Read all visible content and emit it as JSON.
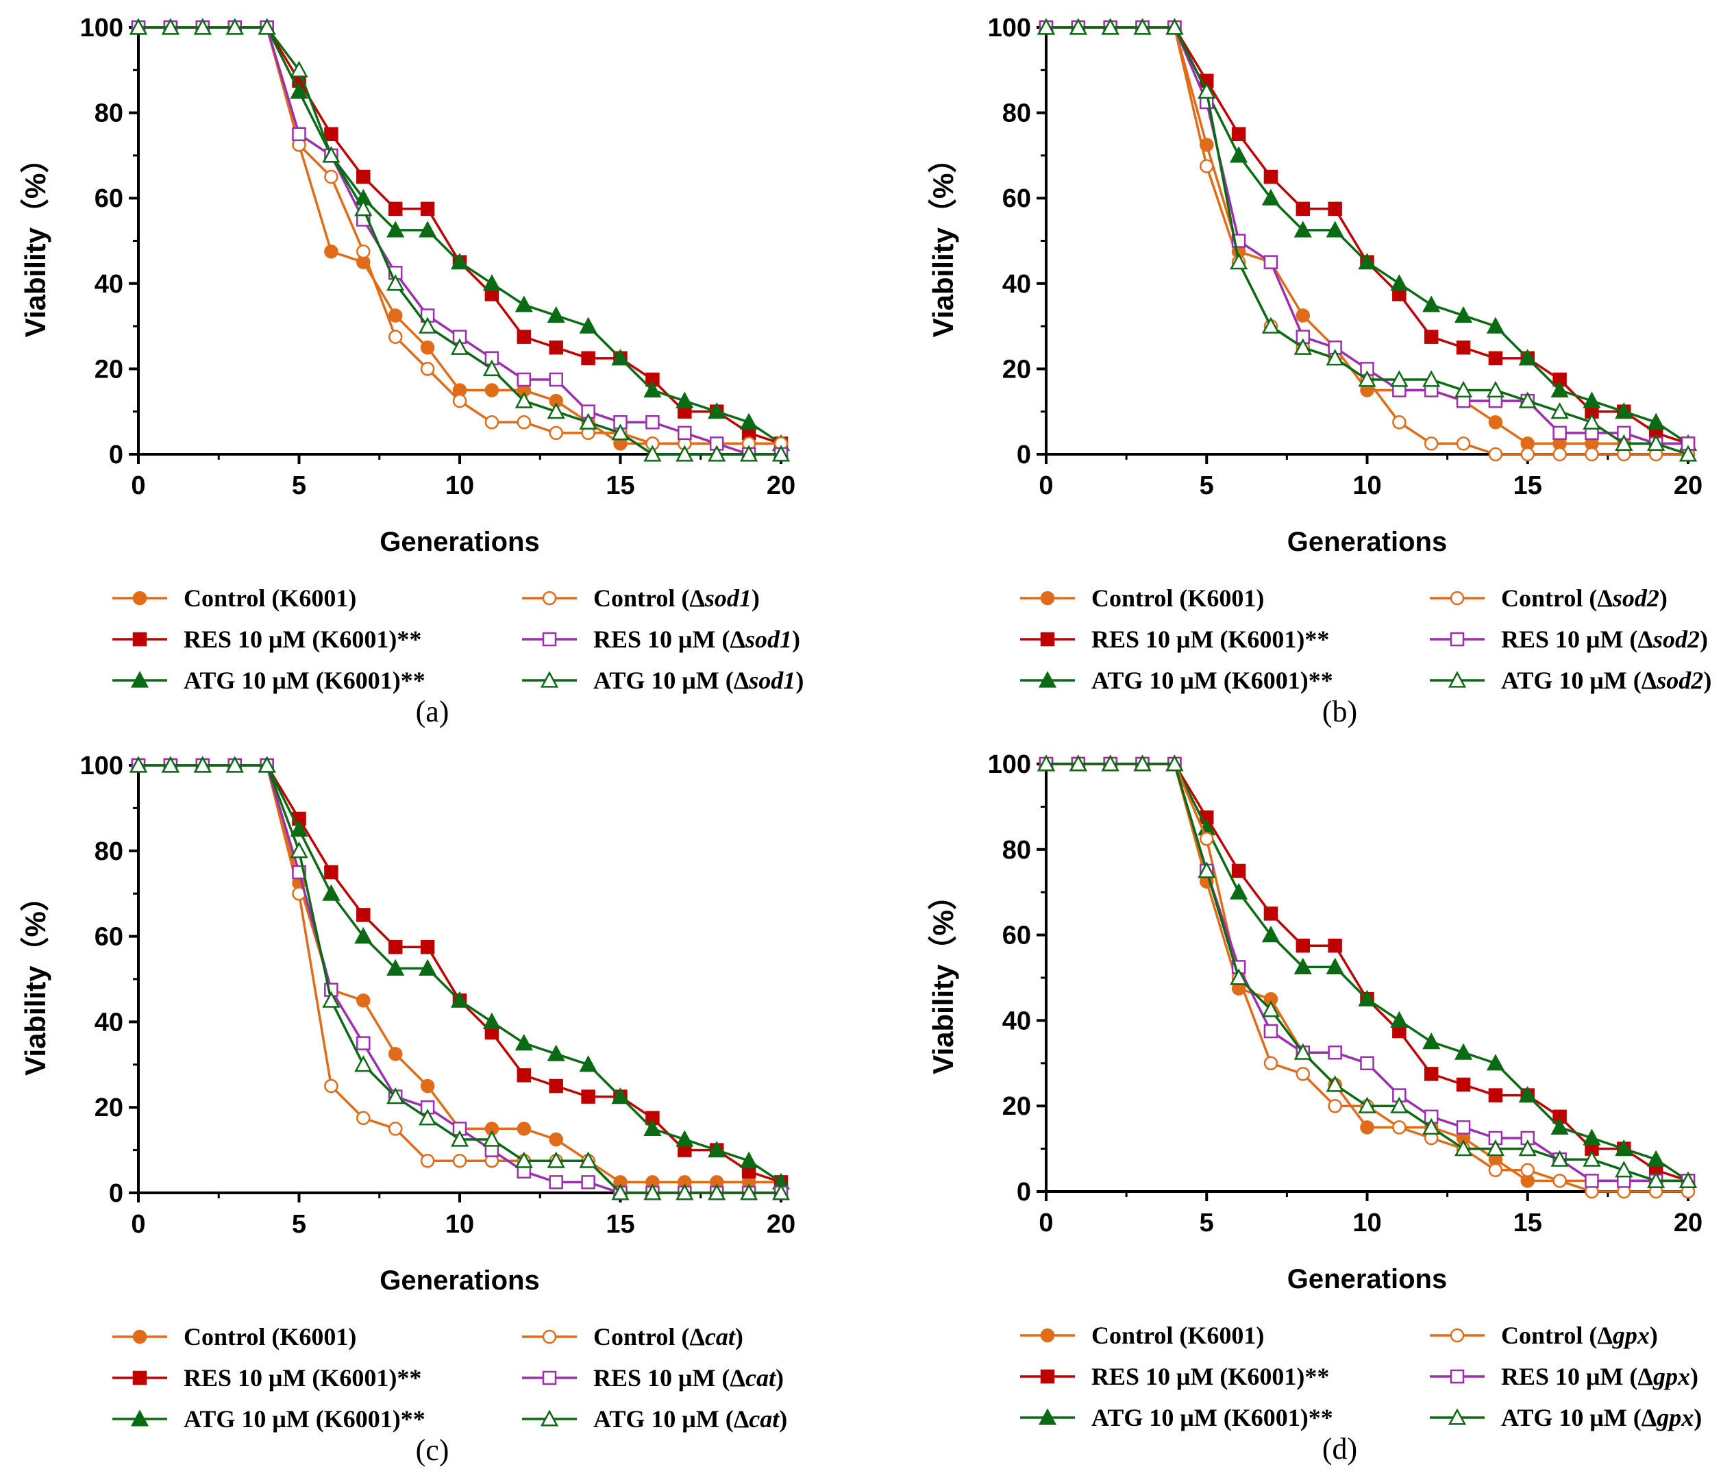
{
  "figure": {
    "ylabel": "Viability（%）",
    "xlabel": "Generations"
  },
  "chart_data": [
    {
      "type": "line",
      "panel": "(a)",
      "xlabel": "Generations",
      "ylabel": "Viability（%）",
      "xlim": [
        0,
        20
      ],
      "ylim": [
        0,
        100
      ],
      "xticks": [
        0,
        5,
        10,
        15,
        20
      ],
      "yticks": [
        0,
        20,
        40,
        60,
        80,
        100
      ],
      "x": [
        0,
        1,
        2,
        3,
        4,
        5,
        6,
        7,
        8,
        9,
        10,
        11,
        12,
        13,
        14,
        15,
        16,
        17,
        18,
        19,
        20
      ],
      "series": [
        {
          "name": "Control (K6001)",
          "legend_prefix": "Control (K6001)",
          "legend_italic": "",
          "legend_suffix": "",
          "color": "#E06C1A",
          "marker": "circle",
          "filled": true,
          "values": [
            100,
            100,
            100,
            100,
            100,
            72.5,
            47.5,
            45,
            32.5,
            25,
            15,
            15,
            15,
            12.5,
            7.5,
            2.5,
            2.5,
            2.5,
            2.5,
            2.5,
            2.5
          ]
        },
        {
          "name": "RES 10 μM (K6001)**",
          "legend_prefix": "RES 10 μM (K6001)**",
          "legend_italic": "",
          "legend_suffix": "",
          "color": "#C00000",
          "marker": "square",
          "filled": true,
          "values": [
            100,
            100,
            100,
            100,
            100,
            87.5,
            75,
            65,
            57.5,
            57.5,
            45,
            37.5,
            27.5,
            25,
            22.5,
            22.5,
            17.5,
            10,
            10,
            5,
            2.5
          ]
        },
        {
          "name": "ATG 10 μM (K6001)**",
          "legend_prefix": "ATG 10 μM (K6001)**",
          "legend_italic": "",
          "legend_suffix": "",
          "color": "#0B6B14",
          "marker": "triangle",
          "filled": true,
          "values": [
            100,
            100,
            100,
            100,
            100,
            85,
            70,
            60,
            52.5,
            52.5,
            45,
            40,
            35,
            32.5,
            30,
            22.5,
            15,
            12.5,
            10,
            7.5,
            2.5
          ]
        },
        {
          "name": "Control (Δsod1)",
          "legend_prefix": "Control (Δ",
          "legend_italic": "sod1",
          "legend_suffix": ")",
          "color": "#E06C1A",
          "marker": "circle",
          "filled": false,
          "values": [
            100,
            100,
            100,
            100,
            100,
            72.5,
            65,
            47.5,
            27.5,
            20,
            12.5,
            7.5,
            7.5,
            5,
            5,
            5,
            2.5,
            2.5,
            2.5,
            2.5,
            2.5
          ]
        },
        {
          "name": "RES 10 μM (Δsod1)",
          "legend_prefix": "RES 10 μM (Δ",
          "legend_italic": "sod1",
          "legend_suffix": ")",
          "color": "#9B2FAE",
          "marker": "square",
          "filled": false,
          "values": [
            100,
            100,
            100,
            100,
            100,
            75,
            70,
            55,
            42.5,
            32.5,
            27.5,
            22.5,
            17.5,
            17.5,
            10,
            7.5,
            7.5,
            5,
            2.5,
            0,
            0
          ]
        },
        {
          "name": "ATG 10 μM (Δsod1)",
          "legend_prefix": "ATG 10 μM (Δ",
          "legend_italic": "sod1",
          "legend_suffix": ")",
          "color": "#0B6B14",
          "marker": "triangle",
          "filled": false,
          "values": [
            100,
            100,
            100,
            100,
            100,
            90,
            70,
            57.5,
            40,
            30,
            25,
            20,
            12.5,
            10,
            7.5,
            5,
            0,
            0,
            0,
            0,
            0
          ]
        }
      ]
    },
    {
      "type": "line",
      "panel": "(b)",
      "xlabel": "Generations",
      "ylabel": "Viability（%）",
      "xlim": [
        0,
        20
      ],
      "ylim": [
        0,
        100
      ],
      "xticks": [
        0,
        5,
        10,
        15,
        20
      ],
      "yticks": [
        0,
        20,
        40,
        60,
        80,
        100
      ],
      "x": [
        0,
        1,
        2,
        3,
        4,
        5,
        6,
        7,
        8,
        9,
        10,
        11,
        12,
        13,
        14,
        15,
        16,
        17,
        18,
        19,
        20
      ],
      "series": [
        {
          "name": "Control (K6001)",
          "legend_prefix": "Control (K6001)",
          "legend_italic": "",
          "legend_suffix": "",
          "color": "#E06C1A",
          "marker": "circle",
          "filled": true,
          "values": [
            100,
            100,
            100,
            100,
            100,
            72.5,
            47.5,
            45,
            32.5,
            25,
            15,
            15,
            15,
            12.5,
            7.5,
            2.5,
            2.5,
            2.5,
            2.5,
            2.5,
            2.5
          ]
        },
        {
          "name": "RES 10 μM (K6001)**",
          "legend_prefix": "RES 10 μM (K6001)**",
          "legend_italic": "",
          "legend_suffix": "",
          "color": "#C00000",
          "marker": "square",
          "filled": true,
          "values": [
            100,
            100,
            100,
            100,
            100,
            87.5,
            75,
            65,
            57.5,
            57.5,
            45,
            37.5,
            27.5,
            25,
            22.5,
            22.5,
            17.5,
            10,
            10,
            5,
            2.5
          ]
        },
        {
          "name": "ATG 10 μM (K6001)**",
          "legend_prefix": "ATG 10 μM (K6001)**",
          "legend_italic": "",
          "legend_suffix": "",
          "color": "#0B6B14",
          "marker": "triangle",
          "filled": true,
          "values": [
            100,
            100,
            100,
            100,
            100,
            85,
            70,
            60,
            52.5,
            52.5,
            45,
            40,
            35,
            32.5,
            30,
            22.5,
            15,
            12.5,
            10,
            7.5,
            2.5
          ]
        },
        {
          "name": "Control (Δsod2)",
          "legend_prefix": "Control (Δ",
          "legend_italic": "sod2",
          "legend_suffix": ")",
          "color": "#E06C1A",
          "marker": "circle",
          "filled": false,
          "values": [
            100,
            100,
            100,
            100,
            100,
            67.5,
            45,
            30,
            25,
            22.5,
            17.5,
            7.5,
            2.5,
            2.5,
            0,
            0,
            0,
            0,
            0,
            0,
            0
          ]
        },
        {
          "name": "RES 10 μM (Δsod2)",
          "legend_prefix": "RES 10 μM (Δ",
          "legend_italic": "sod2",
          "legend_suffix": ")",
          "color": "#9B2FAE",
          "marker": "square",
          "filled": false,
          "values": [
            100,
            100,
            100,
            100,
            100,
            82.5,
            50,
            45,
            27.5,
            25,
            20,
            15,
            15,
            12.5,
            12.5,
            12.5,
            5,
            5,
            5,
            2.5,
            2.5
          ]
        },
        {
          "name": "ATG 10 μM (Δsod2)",
          "legend_prefix": "ATG 10 μM (Δ",
          "legend_italic": "sod2",
          "legend_suffix": ")",
          "color": "#0B6B14",
          "marker": "triangle",
          "filled": false,
          "values": [
            100,
            100,
            100,
            100,
            100,
            85,
            45,
            30,
            25,
            22.5,
            17.5,
            17.5,
            17.5,
            15,
            15,
            12.5,
            10,
            7.5,
            2.5,
            2.5,
            0
          ]
        }
      ]
    },
    {
      "type": "line",
      "panel": "(c)",
      "xlabel": "Generations",
      "ylabel": "Viability（%）",
      "xlim": [
        0,
        20
      ],
      "ylim": [
        0,
        100
      ],
      "xticks": [
        0,
        5,
        10,
        15,
        20
      ],
      "yticks": [
        0,
        20,
        40,
        60,
        80,
        100
      ],
      "x": [
        0,
        1,
        2,
        3,
        4,
        5,
        6,
        7,
        8,
        9,
        10,
        11,
        12,
        13,
        14,
        15,
        16,
        17,
        18,
        19,
        20
      ],
      "series": [
        {
          "name": "Control (K6001)",
          "legend_prefix": "Control (K6001)",
          "legend_italic": "",
          "legend_suffix": "",
          "color": "#E06C1A",
          "marker": "circle",
          "filled": true,
          "values": [
            100,
            100,
            100,
            100,
            100,
            72.5,
            47.5,
            45,
            32.5,
            25,
            15,
            15,
            15,
            12.5,
            7.5,
            2.5,
            2.5,
            2.5,
            2.5,
            2.5,
            2.5
          ]
        },
        {
          "name": "RES 10 μM (K6001)**",
          "legend_prefix": "RES 10 μM (K6001)**",
          "legend_italic": "",
          "legend_suffix": "",
          "color": "#C00000",
          "marker": "square",
          "filled": true,
          "values": [
            100,
            100,
            100,
            100,
            100,
            87.5,
            75,
            65,
            57.5,
            57.5,
            45,
            37.5,
            27.5,
            25,
            22.5,
            22.5,
            17.5,
            10,
            10,
            5,
            2.5
          ]
        },
        {
          "name": "ATG 10 μM (K6001)**",
          "legend_prefix": "ATG 10 μM (K6001)**",
          "legend_italic": "",
          "legend_suffix": "",
          "color": "#0B6B14",
          "marker": "triangle",
          "filled": true,
          "values": [
            100,
            100,
            100,
            100,
            100,
            85,
            70,
            60,
            52.5,
            52.5,
            45,
            40,
            35,
            32.5,
            30,
            22.5,
            15,
            12.5,
            10,
            7.5,
            2.5
          ]
        },
        {
          "name": "Control (Δcat)",
          "legend_prefix": "Control (Δ",
          "legend_italic": "cat",
          "legend_suffix": ")",
          "color": "#E06C1A",
          "marker": "circle",
          "filled": false,
          "values": [
            100,
            100,
            100,
            100,
            100,
            70,
            25,
            17.5,
            15,
            7.5,
            7.5,
            7.5,
            7.5,
            7.5,
            7.5,
            0,
            0,
            0,
            0,
            0,
            0
          ]
        },
        {
          "name": "RES 10 μM (Δcat)",
          "legend_prefix": "RES 10 μM (Δ",
          "legend_italic": "cat",
          "legend_suffix": ")",
          "color": "#9B2FAE",
          "marker": "square",
          "filled": false,
          "values": [
            100,
            100,
            100,
            100,
            100,
            75,
            47.5,
            35,
            22.5,
            20,
            15,
            10,
            5,
            2.5,
            2.5,
            0,
            0,
            0,
            0,
            0,
            0
          ]
        },
        {
          "name": "ATG 10 μM (Δcat)",
          "legend_prefix": "ATG 10 μM (Δ",
          "legend_italic": "cat",
          "legend_suffix": ")",
          "color": "#0B6B14",
          "marker": "triangle",
          "filled": false,
          "values": [
            100,
            100,
            100,
            100,
            100,
            80,
            45,
            30,
            22.5,
            17.5,
            12.5,
            12.5,
            7.5,
            7.5,
            7.5,
            0,
            0,
            0,
            0,
            0,
            0
          ]
        }
      ]
    },
    {
      "type": "line",
      "panel": "(d)",
      "xlabel": "Generations",
      "ylabel": "Viability（%）",
      "xlim": [
        0,
        20
      ],
      "ylim": [
        0,
        100
      ],
      "xticks": [
        0,
        5,
        10,
        15,
        20
      ],
      "yticks": [
        0,
        20,
        40,
        60,
        80,
        100
      ],
      "x": [
        0,
        1,
        2,
        3,
        4,
        5,
        6,
        7,
        8,
        9,
        10,
        11,
        12,
        13,
        14,
        15,
        16,
        17,
        18,
        19,
        20
      ],
      "series": [
        {
          "name": "Control (K6001)",
          "legend_prefix": "Control (K6001)",
          "legend_italic": "",
          "legend_suffix": "",
          "color": "#E06C1A",
          "marker": "circle",
          "filled": true,
          "values": [
            100,
            100,
            100,
            100,
            100,
            72.5,
            47.5,
            45,
            32.5,
            25,
            15,
            15,
            15,
            12.5,
            7.5,
            2.5,
            2.5,
            2.5,
            2.5,
            2.5,
            2.5
          ]
        },
        {
          "name": "RES 10 μM (K6001)**",
          "legend_prefix": "RES 10 μM (K6001)**",
          "legend_italic": "",
          "legend_suffix": "",
          "color": "#C00000",
          "marker": "square",
          "filled": true,
          "values": [
            100,
            100,
            100,
            100,
            100,
            87.5,
            75,
            65,
            57.5,
            57.5,
            45,
            37.5,
            27.5,
            25,
            22.5,
            22.5,
            17.5,
            10,
            10,
            5,
            2.5
          ]
        },
        {
          "name": "ATG 10 μM (K6001)**",
          "legend_prefix": "ATG 10 μM (K6001)**",
          "legend_italic": "",
          "legend_suffix": "",
          "color": "#0B6B14",
          "marker": "triangle",
          "filled": true,
          "values": [
            100,
            100,
            100,
            100,
            100,
            85,
            70,
            60,
            52.5,
            52.5,
            45,
            40,
            35,
            32.5,
            30,
            22.5,
            15,
            12.5,
            10,
            7.5,
            2.5
          ]
        },
        {
          "name": "Control (Δgpx)",
          "legend_prefix": "Control (Δ",
          "legend_italic": "gpx",
          "legend_suffix": ")",
          "color": "#E06C1A",
          "marker": "circle",
          "filled": false,
          "values": [
            100,
            100,
            100,
            100,
            100,
            82.5,
            50,
            30,
            27.5,
            20,
            20,
            15,
            12.5,
            10,
            5,
            5,
            2.5,
            0,
            0,
            0,
            0
          ]
        },
        {
          "name": "RES 10 μM (Δgpx)",
          "legend_prefix": "RES 10 μM (Δ",
          "legend_italic": "gpx",
          "legend_suffix": ")",
          "color": "#9B2FAE",
          "marker": "square",
          "filled": false,
          "values": [
            100,
            100,
            100,
            100,
            100,
            75,
            52.5,
            37.5,
            32.5,
            32.5,
            30,
            22.5,
            17.5,
            15,
            12.5,
            12.5,
            7.5,
            2.5,
            2.5,
            2.5,
            2.5
          ]
        },
        {
          "name": "ATG 10 μM (Δgpx)",
          "legend_prefix": "ATG 10 μM (Δ",
          "legend_italic": "gpx",
          "legend_suffix": ")",
          "color": "#0B6B14",
          "marker": "triangle",
          "filled": false,
          "values": [
            100,
            100,
            100,
            100,
            100,
            75,
            50,
            42.5,
            32.5,
            25,
            20,
            20,
            15,
            10,
            10,
            10,
            7.5,
            7.5,
            5,
            2.5,
            2.5
          ]
        }
      ]
    }
  ]
}
